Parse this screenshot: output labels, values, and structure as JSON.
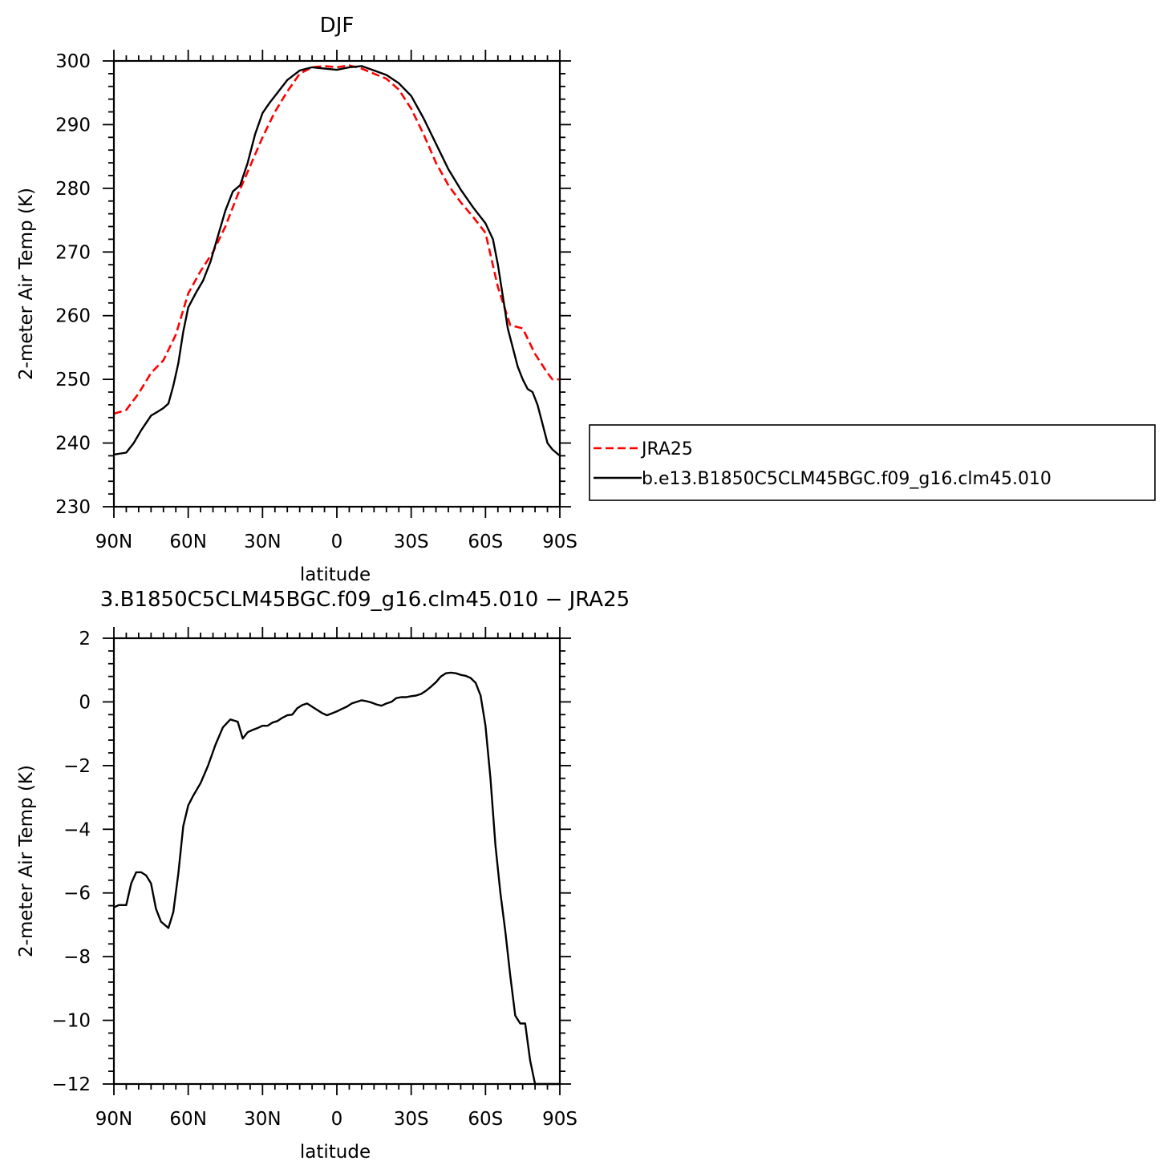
{
  "chart_data": [
    {
      "type": "line",
      "title": "DJF",
      "xlabel": "latitude",
      "ylabel": "2-meter Air Temp (K)",
      "xlim": [
        -90,
        90
      ],
      "ylim": [
        230,
        300
      ],
      "x_tick_values": [
        -90,
        -60,
        -30,
        0,
        30,
        60,
        90
      ],
      "x_tick_labels": [
        "90N",
        "60N",
        "30N",
        "0",
        "30S",
        "60S",
        "90S"
      ],
      "y_ticks": [
        230,
        240,
        250,
        260,
        270,
        280,
        290,
        300
      ],
      "legend": "right",
      "series": [
        {
          "name": "JRA25",
          "color": "#ff0000",
          "style": "dashed",
          "x": [
            -90,
            -85,
            -80,
            -75,
            -70,
            -65,
            -60,
            -55,
            -50,
            -45,
            -40,
            -35,
            -30,
            -25,
            -20,
            -15,
            -10,
            -5,
            0,
            5,
            10,
            15,
            20,
            25,
            30,
            35,
            40,
            45,
            50,
            55,
            60,
            65,
            70,
            75,
            80,
            85,
            87,
            90
          ],
          "y": [
            244.6,
            245.2,
            247.8,
            251.0,
            253.0,
            257.0,
            263.5,
            267.0,
            270.0,
            274.0,
            279.0,
            283.5,
            288.0,
            292.0,
            295.2,
            298.0,
            299.0,
            299.2,
            299.0,
            299.3,
            298.8,
            298.0,
            297.2,
            295.5,
            292.5,
            288.5,
            284.0,
            280.5,
            277.8,
            275.5,
            273.0,
            264.5,
            258.5,
            258.0,
            254.0,
            251.0,
            250.0,
            250.0
          ]
        },
        {
          "name": "b.e13.B1850C5CLM45BGC.f09_g16.clm45.010",
          "color": "#000000",
          "style": "solid",
          "x": [
            -90,
            -85,
            -82,
            -79,
            -75,
            -72,
            -70,
            -68,
            -66,
            -64,
            -62,
            -60,
            -57,
            -54,
            -51,
            -48,
            -45,
            -42,
            -39,
            -36,
            -33,
            -30,
            -27,
            -24,
            -20,
            -15,
            -10,
            -5,
            0,
            5,
            10,
            15,
            20,
            25,
            30,
            35,
            40,
            45,
            50,
            55,
            60,
            63,
            65,
            67,
            69,
            71,
            73,
            75,
            77,
            79,
            81,
            83,
            85,
            87,
            90
          ],
          "y": [
            238.2,
            238.5,
            240.0,
            242.0,
            244.3,
            245.0,
            245.5,
            246.2,
            249.0,
            252.5,
            257.5,
            261.3,
            263.5,
            265.5,
            268.5,
            272.5,
            276.5,
            279.5,
            280.5,
            284.0,
            288.5,
            291.8,
            293.5,
            295.0,
            297.0,
            298.5,
            299.0,
            298.8,
            298.6,
            299.0,
            299.2,
            298.5,
            297.8,
            296.5,
            294.5,
            291.0,
            287.0,
            283.0,
            279.8,
            277.0,
            274.5,
            272.0,
            268.0,
            263.0,
            258.0,
            255.0,
            252.0,
            250.0,
            248.5,
            248.0,
            246.0,
            243.0,
            240.0,
            239.0,
            238.0
          ]
        }
      ]
    },
    {
      "type": "line",
      "title": "3.B1850C5CLM45BGC.f09_g16.clm45.010 − JRA25",
      "xlabel": "latitude",
      "ylabel": "2-meter Air Temp (K)",
      "xlim": [
        -90,
        90
      ],
      "ylim": [
        -12,
        2
      ],
      "x_tick_values": [
        -90,
        -60,
        -30,
        0,
        30,
        60,
        90
      ],
      "x_tick_labels": [
        "90N",
        "60N",
        "30N",
        "0",
        "30S",
        "60S",
        "90S"
      ],
      "y_ticks": [
        -12,
        -10,
        -8,
        -6,
        -4,
        -2,
        0,
        2
      ],
      "series": [
        {
          "color": "#000000",
          "style": "solid",
          "x": [
            -90,
            -88,
            -85,
            -83,
            -81,
            -79,
            -77,
            -75,
            -73,
            -71,
            -68,
            -66,
            -64,
            -62,
            -60,
            -58,
            -55,
            -52,
            -49,
            -46,
            -43,
            -40,
            -38,
            -36,
            -34,
            -32,
            -30,
            -28,
            -26,
            -24,
            -22,
            -20,
            -18,
            -16,
            -14,
            -12,
            -10,
            -8,
            -6,
            -4,
            -2,
            0,
            2,
            4,
            6,
            8,
            10,
            12,
            14,
            16,
            18,
            20,
            22,
            24,
            26,
            28,
            30,
            32,
            34,
            36,
            38,
            40,
            42,
            44,
            46,
            48,
            50,
            52,
            54,
            56,
            58,
            60,
            62,
            64,
            66,
            68,
            70,
            72,
            74,
            76,
            78,
            80,
            82,
            84,
            86,
            88,
            90
          ],
          "y": [
            -6.45,
            -6.38,
            -6.38,
            -5.7,
            -5.35,
            -5.35,
            -5.45,
            -5.7,
            -6.5,
            -6.9,
            -7.1,
            -6.6,
            -5.4,
            -3.9,
            -3.25,
            -2.95,
            -2.55,
            -2.0,
            -1.35,
            -0.8,
            -0.55,
            -0.62,
            -1.15,
            -0.95,
            -0.88,
            -0.82,
            -0.75,
            -0.75,
            -0.65,
            -0.6,
            -0.5,
            -0.42,
            -0.4,
            -0.2,
            -0.1,
            -0.05,
            -0.15,
            -0.25,
            -0.35,
            -0.42,
            -0.36,
            -0.3,
            -0.22,
            -0.15,
            -0.05,
            0.0,
            0.05,
            0.02,
            -0.02,
            -0.08,
            -0.12,
            -0.05,
            0.0,
            0.12,
            0.15,
            0.15,
            0.18,
            0.2,
            0.25,
            0.35,
            0.48,
            0.62,
            0.8,
            0.9,
            0.92,
            0.9,
            0.85,
            0.82,
            0.75,
            0.6,
            0.2,
            -0.75,
            -2.4,
            -4.5,
            -6.0,
            -7.2,
            -8.6,
            -9.85,
            -10.1,
            -10.1,
            -11.25,
            -12.0,
            -12.0,
            -12.0,
            -12.0,
            -12.0,
            -12.0
          ]
        }
      ]
    }
  ]
}
